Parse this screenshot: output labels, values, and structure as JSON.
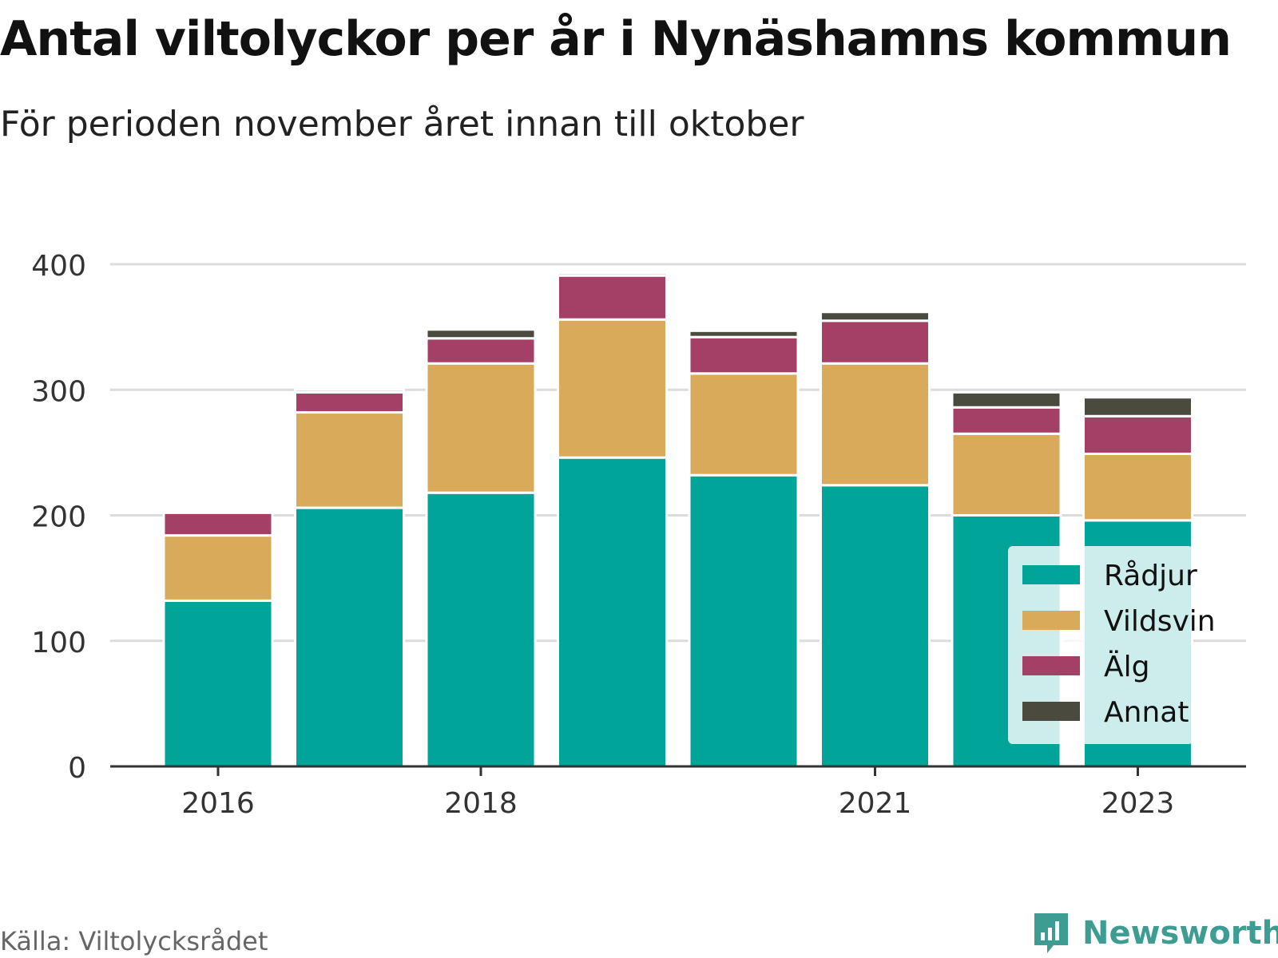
{
  "title": "Antal viltolyckor per år i Nynäshamns kommun",
  "subtitle": "För perioden november året innan till oktober",
  "source": "Källa: Viltolycksrådet",
  "brand": "Newsworthy",
  "colors": {
    "Rådjur": "#00a499",
    "Vildsvin": "#d9aa5a",
    "Älg": "#a43f66",
    "Annat": "#4a4a3e"
  },
  "chart_data": {
    "type": "bar",
    "stacked": true,
    "categories": [
      2016,
      2017,
      2018,
      2019,
      2020,
      2021,
      2022,
      2023
    ],
    "x_tick_labels": [
      "2016",
      "2018",
      "2021",
      "2023"
    ],
    "series": [
      {
        "name": "Rådjur",
        "values": [
          132,
          206,
          218,
          246,
          232,
          224,
          200,
          196
        ]
      },
      {
        "name": "Vildsvin",
        "values": [
          52,
          76,
          103,
          110,
          81,
          97,
          65,
          53
        ]
      },
      {
        "name": "Älg",
        "values": [
          18,
          16,
          20,
          35,
          29,
          34,
          21,
          30
        ]
      },
      {
        "name": "Annat",
        "values": [
          0,
          2,
          7,
          2,
          5,
          7,
          12,
          15
        ]
      }
    ],
    "ylim": [
      0,
      400
    ],
    "yticks": [
      0,
      100,
      200,
      300,
      400
    ],
    "grid": true,
    "legend_position": "bottom-right"
  }
}
